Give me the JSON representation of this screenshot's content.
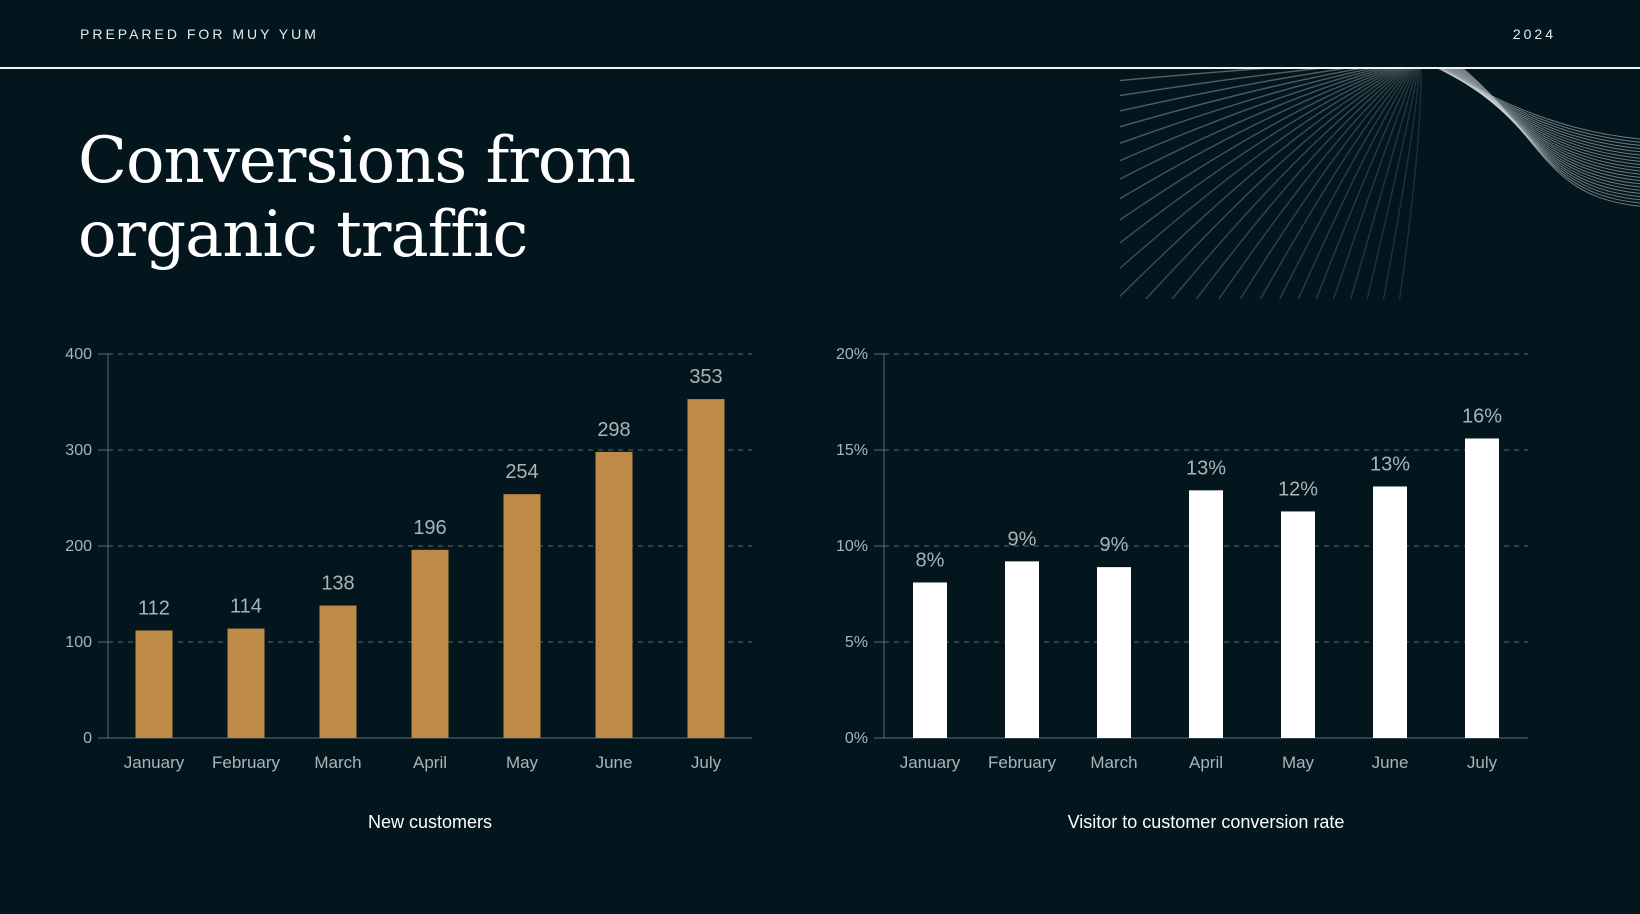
{
  "header": {
    "prepared_for": "PREPARED FOR MUY YUM",
    "year": "2024"
  },
  "title": "Conversions from organic traffic",
  "colors": {
    "background": "#04161d",
    "bar_left": "#bd8a48",
    "bar_right": "#ffffff",
    "gridline": "#5d6b72",
    "label": "#a9b4ba"
  },
  "chart_data": [
    {
      "type": "bar",
      "title": "",
      "caption": "New customers",
      "categories": [
        "January",
        "February",
        "March",
        "April",
        "May",
        "June",
        "July"
      ],
      "values": [
        112,
        114,
        138,
        196,
        254,
        298,
        353
      ],
      "data_labels": [
        "112",
        "114",
        "138",
        "196",
        "254",
        "298",
        "353"
      ],
      "yticks": [
        "0",
        "100",
        "200",
        "300",
        "400"
      ],
      "ytick_values": [
        0,
        100,
        200,
        300,
        400
      ],
      "ylim": [
        0,
        400
      ],
      "xlabel": "",
      "ylabel": "",
      "grid": true,
      "bar_color": "#bd8a48"
    },
    {
      "type": "bar",
      "title": "",
      "caption": "Visitor to customer conversion rate",
      "categories": [
        "January",
        "February",
        "March",
        "April",
        "May",
        "June",
        "July"
      ],
      "values": [
        8.1,
        9.2,
        8.9,
        12.9,
        11.8,
        13.1,
        15.6
      ],
      "data_labels": [
        "8%",
        "9%",
        "9%",
        "13%",
        "12%",
        "13%",
        "16%"
      ],
      "yticks": [
        "0%",
        "5%",
        "10%",
        "15%",
        "20%"
      ],
      "ytick_values": [
        0,
        5,
        10,
        15,
        20
      ],
      "ylim": [
        0,
        20
      ],
      "xlabel": "",
      "ylabel": "",
      "grid": true,
      "bar_color": "#ffffff"
    }
  ]
}
